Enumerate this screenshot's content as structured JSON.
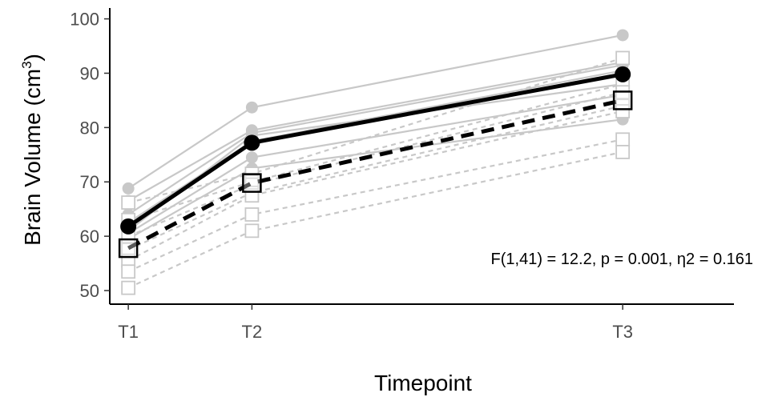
{
  "chart_data": {
    "type": "line",
    "title": "",
    "xlabel": "Timepoint",
    "ylabel_main": "Brain Volume (cm",
    "ylabel_sup": "3",
    "ylabel_close": ")",
    "categories": [
      "T1",
      "T2",
      "T3"
    ],
    "x_positions": [
      1,
      2,
      5
    ],
    "xlim": [
      0.85,
      5.9
    ],
    "ylim": [
      47.5,
      102
    ],
    "yticks": [
      50,
      60,
      70,
      80,
      90,
      100
    ],
    "grid": false,
    "annotation": "F(1,41) = 12.2, p = 0.001, η2 = 0.161",
    "colors": {
      "background_lines": "#c8c8c8",
      "mean_lines": "#000000"
    },
    "background_series_solid": [
      [
        68.8,
        83.7,
        97.0
      ],
      [
        66.5,
        79.5,
        92.0
      ],
      [
        64.0,
        79.0,
        91.5
      ],
      [
        62.5,
        77.5,
        90.5
      ],
      [
        61.0,
        78.5,
        88.0
      ],
      [
        60.5,
        74.5,
        86.0
      ],
      [
        59.5,
        72.5,
        81.5
      ]
    ],
    "background_series_dashed": [
      [
        66.2,
        71.5,
        92.8
      ],
      [
        63.0,
        70.0,
        88.0
      ],
      [
        60.0,
        69.5,
        86.5
      ],
      [
        57.5,
        68.0,
        84.0
      ],
      [
        55.5,
        67.5,
        83.0
      ],
      [
        53.5,
        64.0,
        77.8
      ],
      [
        50.5,
        61.0,
        75.5
      ]
    ],
    "series": [
      {
        "style": "solid",
        "marker": "circle",
        "values": [
          61.8,
          77.2,
          89.8
        ]
      },
      {
        "style": "dashed",
        "marker": "square",
        "values": [
          57.8,
          69.8,
          85.0
        ]
      }
    ]
  }
}
